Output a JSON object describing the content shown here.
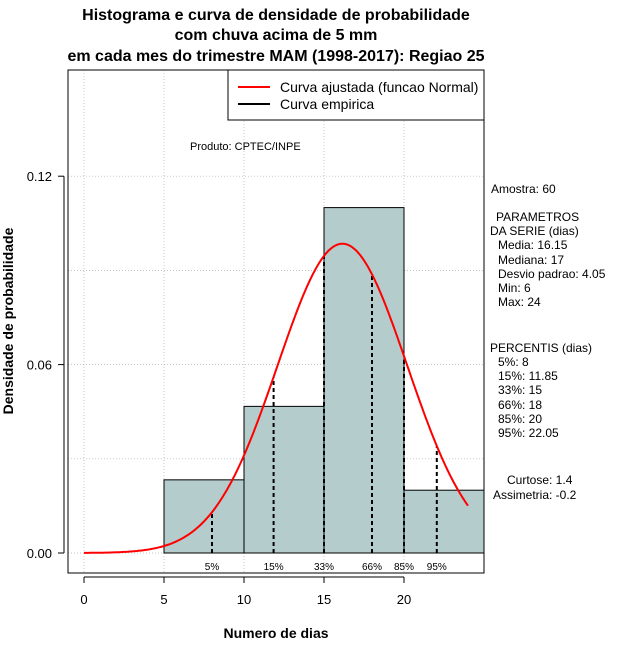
{
  "title_lines": [
    "Histograma e curva de densidade de probabilidade",
    "com chuva acima de 5 mm",
    "em cada mes do trimestre MAM (1998-2017): Regiao 25"
  ],
  "product": "Produto: CPTEC/INPE",
  "legend": {
    "fitted": "Curva ajustada (funcao Normal)",
    "empirical": "Curva empirica"
  },
  "sidebar": {
    "sample": "Amostra: 60",
    "params_title_1": "PARAMETROS",
    "params_title_2": "DA SERIE (dias)",
    "params": [
      "Media: 16.15",
      "Mediana: 17",
      "Desvio padrao: 4.05",
      "Min: 6",
      "Max: 24"
    ],
    "percentis_title": "PERCENTIS (dias)",
    "percentis": [
      "5%: 8",
      "15%: 11.85",
      "33%: 15",
      "66%: 18",
      "85%: 20",
      "95%: 22.05"
    ],
    "curtose": "Curtose: 1.4",
    "assimetria": "Assimetria: -0.2"
  },
  "colors": {
    "bar_fill": "#b4cccc",
    "curve": "#ff0000",
    "grid": "#b0b0b0"
  },
  "chart_data": {
    "type": "bar",
    "title": "Histograma e curva de densidade de probabilidade com chuva acima de 5 mm em cada mes do trimestre MAM (1998-2017): Regiao 25",
    "xlabel": "Numero de dias",
    "ylabel": "Densidade de probabilidade",
    "xlim": [
      -1,
      25
    ],
    "ylim": [
      0,
      0.147
    ],
    "x_ticks": [
      0,
      5,
      10,
      15,
      20
    ],
    "y_ticks": [
      0.0,
      0.06,
      0.12
    ],
    "y_tick_labels": [
      "0.00",
      "0.06",
      "0.12"
    ],
    "bins": [
      {
        "from": 5,
        "to": 10,
        "density": 0.0233
      },
      {
        "from": 10,
        "to": 15,
        "density": 0.0467
      },
      {
        "from": 15,
        "to": 20,
        "density": 0.11
      },
      {
        "from": 20,
        "to": 25,
        "density": 0.02
      }
    ],
    "normal_fit": {
      "mean": 16.15,
      "sd": 4.05,
      "x_from": 0,
      "x_to": 24
    },
    "percentiles": [
      {
        "label": "5%",
        "x": 8
      },
      {
        "label": "15%",
        "x": 11.85
      },
      {
        "label": "33%",
        "x": 15
      },
      {
        "label": "66%",
        "x": 18
      },
      {
        "label": "85%",
        "x": 20
      },
      {
        "label": "95%",
        "x": 22.05
      }
    ],
    "grid": true,
    "legend_position": "top-right"
  }
}
